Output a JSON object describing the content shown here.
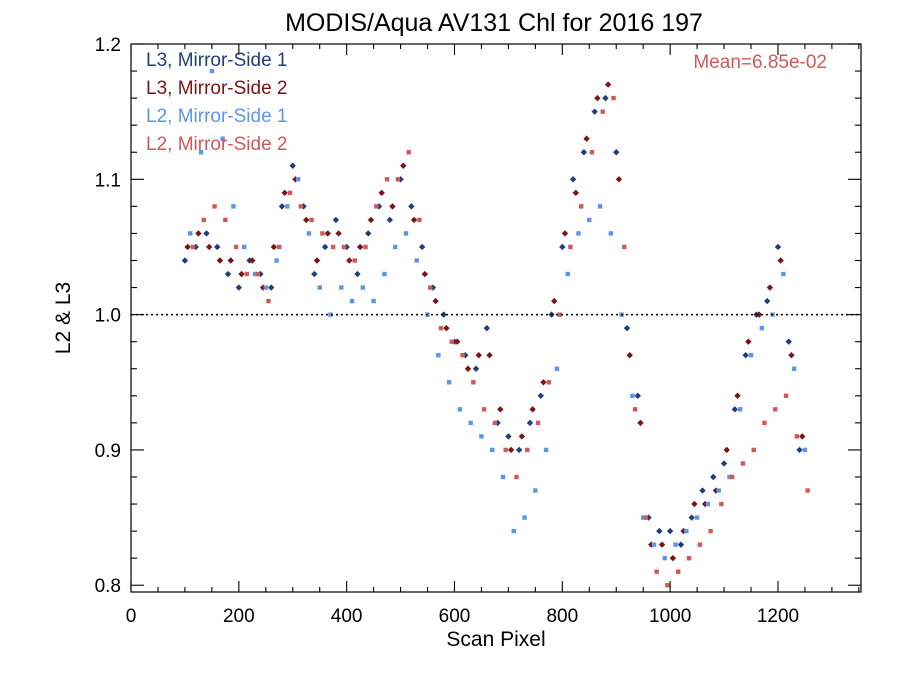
{
  "chart_data": {
    "type": "scatter",
    "title": "MODIS/Aqua AV131 Chl for 2016 197",
    "xlabel": "Scan Pixel",
    "ylabel": "L2 & L3",
    "xlim": [
      0,
      1354
    ],
    "ylim": [
      0.795,
      1.2
    ],
    "x_ticks": [
      {
        "value": 0,
        "label": "0"
      },
      {
        "value": 200,
        "label": "200"
      },
      {
        "value": 400,
        "label": "400"
      },
      {
        "value": 600,
        "label": "600"
      },
      {
        "value": 800,
        "label": "800"
      },
      {
        "value": 1000,
        "label": "1000"
      },
      {
        "value": 1200,
        "label": "1200"
      }
    ],
    "x_minor_step": 50,
    "y_ticks": [
      {
        "value": 0.8,
        "label": "0.8"
      },
      {
        "value": 0.9,
        "label": "0.9"
      },
      {
        "value": 1.0,
        "label": "1.0"
      },
      {
        "value": 1.1,
        "label": "1.1"
      },
      {
        "value": 1.2,
        "label": "1.2"
      }
    ],
    "y_minor_step": 0.02,
    "reference_line": {
      "y": 1.0,
      "style": "dotted"
    },
    "annotation": {
      "text": "Mean=6.85e-02",
      "color": "#D0595A",
      "placement": "top-right"
    },
    "legend_placement": "top-left",
    "grid": false,
    "series": [
      {
        "name": "L3, Mirror-Side 1",
        "color": "#1F3F7A",
        "marker": "diamond",
        "x": [
          100,
          120,
          140,
          160,
          180,
          200,
          220,
          240,
          260,
          280,
          300,
          320,
          340,
          360,
          380,
          400,
          420,
          440,
          460,
          480,
          500,
          520,
          540,
          560,
          580,
          600,
          620,
          640,
          660,
          680,
          700,
          720,
          740,
          760,
          780,
          800,
          820,
          840,
          860,
          880,
          900,
          920,
          940,
          960,
          980,
          1000,
          1020,
          1040,
          1060,
          1080,
          1100,
          1120,
          1140,
          1160,
          1180,
          1200,
          1220,
          1240
        ],
        "y": [
          1.04,
          1.05,
          1.06,
          1.05,
          1.03,
          1.02,
          1.04,
          1.03,
          1.02,
          1.08,
          1.11,
          1.08,
          1.03,
          1.05,
          1.07,
          1.05,
          1.03,
          1.06,
          1.08,
          1.07,
          1.1,
          1.08,
          1.05,
          1.02,
          1.0,
          0.98,
          0.97,
          0.96,
          0.99,
          0.92,
          0.91,
          0.9,
          0.92,
          0.94,
          1.0,
          1.05,
          1.1,
          1.12,
          1.15,
          1.16,
          1.12,
          0.99,
          0.94,
          0.85,
          0.84,
          0.84,
          0.83,
          0.85,
          0.87,
          0.88,
          0.89,
          0.93,
          0.97,
          1.0,
          1.01,
          1.05,
          0.98,
          0.9
        ]
      },
      {
        "name": "L3, Mirror-Side 2",
        "color": "#7A1416",
        "marker": "diamond",
        "x": [
          105,
          125,
          145,
          165,
          185,
          205,
          225,
          245,
          265,
          285,
          305,
          325,
          345,
          365,
          385,
          405,
          425,
          445,
          465,
          485,
          505,
          525,
          545,
          565,
          585,
          605,
          625,
          645,
          665,
          685,
          705,
          725,
          745,
          765,
          785,
          805,
          825,
          845,
          865,
          885,
          905,
          925,
          945,
          965,
          985,
          1005,
          1025,
          1045,
          1065,
          1085,
          1105,
          1125,
          1145,
          1165,
          1185,
          1205,
          1225,
          1245
        ],
        "y": [
          1.05,
          1.06,
          1.05,
          1.04,
          1.04,
          1.03,
          1.04,
          1.02,
          1.05,
          1.09,
          1.1,
          1.07,
          1.04,
          1.06,
          1.06,
          1.04,
          1.05,
          1.07,
          1.09,
          1.08,
          1.11,
          1.07,
          1.03,
          1.01,
          0.99,
          0.98,
          0.96,
          0.97,
          0.97,
          0.93,
          0.9,
          0.91,
          0.93,
          0.95,
          1.01,
          1.06,
          1.09,
          1.13,
          1.16,
          1.17,
          1.1,
          0.97,
          0.92,
          0.83,
          0.83,
          0.82,
          0.84,
          0.86,
          0.86,
          0.87,
          0.9,
          0.94,
          0.98,
          1.0,
          1.02,
          1.04,
          0.97,
          0.91
        ]
      },
      {
        "name": "L2, Mirror-Side 1",
        "color": "#5E95E8",
        "marker": "square",
        "x": [
          110,
          130,
          150,
          170,
          190,
          210,
          230,
          250,
          270,
          290,
          310,
          330,
          350,
          370,
          390,
          410,
          430,
          450,
          470,
          490,
          510,
          530,
          550,
          570,
          590,
          610,
          630,
          650,
          670,
          690,
          710,
          730,
          750,
          770,
          790,
          810,
          830,
          850,
          870,
          890,
          910,
          930,
          950,
          970,
          990,
          1010,
          1030,
          1050,
          1070,
          1090,
          1110,
          1130,
          1150,
          1170,
          1190,
          1210,
          1230,
          1250
        ],
        "y": [
          1.06,
          1.12,
          1.18,
          1.13,
          1.08,
          1.05,
          1.03,
          1.02,
          1.04,
          1.08,
          1.1,
          1.06,
          1.02,
          1.0,
          1.02,
          1.01,
          1.02,
          1.01,
          1.03,
          1.05,
          1.06,
          1.04,
          1.0,
          0.97,
          0.95,
          0.93,
          0.92,
          0.91,
          0.9,
          0.88,
          0.84,
          0.85,
          0.87,
          0.9,
          0.96,
          1.03,
          1.06,
          1.07,
          1.08,
          1.06,
          1.0,
          0.94,
          0.85,
          0.83,
          0.82,
          0.83,
          0.84,
          0.85,
          0.86,
          0.87,
          0.88,
          0.93,
          0.97,
          0.99,
          1.0,
          1.03,
          0.96,
          0.9
        ]
      },
      {
        "name": "L2, Mirror-Side 2",
        "color": "#D0595A",
        "marker": "square",
        "x": [
          115,
          135,
          155,
          175,
          195,
          215,
          235,
          255,
          275,
          295,
          315,
          335,
          355,
          375,
          395,
          415,
          435,
          455,
          475,
          495,
          515,
          535,
          555,
          575,
          595,
          615,
          635,
          655,
          675,
          695,
          715,
          735,
          755,
          775,
          795,
          815,
          835,
          855,
          875,
          895,
          915,
          935,
          955,
          975,
          995,
          1015,
          1035,
          1055,
          1075,
          1095,
          1115,
          1135,
          1155,
          1175,
          1195,
          1215,
          1235,
          1255
        ],
        "y": [
          1.05,
          1.07,
          1.08,
          1.07,
          1.05,
          1.03,
          1.03,
          1.01,
          1.05,
          1.09,
          1.08,
          1.07,
          1.06,
          1.05,
          1.05,
          1.04,
          1.05,
          1.08,
          1.1,
          1.1,
          1.12,
          1.07,
          1.02,
          0.99,
          0.98,
          0.97,
          0.95,
          0.93,
          0.92,
          0.9,
          0.88,
          0.9,
          0.92,
          0.95,
          1.0,
          1.05,
          1.08,
          1.12,
          1.15,
          1.16,
          1.05,
          0.93,
          0.85,
          0.81,
          0.8,
          0.81,
          0.82,
          0.83,
          0.84,
          0.86,
          0.88,
          0.89,
          0.9,
          0.92,
          0.93,
          0.94,
          0.91,
          0.87
        ]
      }
    ]
  }
}
